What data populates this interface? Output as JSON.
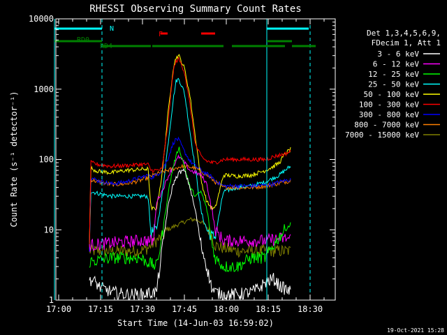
{
  "chart_data": {
    "type": "line",
    "title": "RHESSI Observing Summary Count Rates",
    "xlabel": "Start Time (14-Jun-03 16:59:02)",
    "ylabel": "Count Rate (s⁻¹ detector⁻¹)",
    "yscale": "log",
    "ylim": [
      1,
      10000
    ],
    "xlim_minutes": [
      0,
      100
    ],
    "x_ticks": [
      "17:00",
      "17:15",
      "17:30",
      "17:45",
      "18:00",
      "18:15",
      "18:30"
    ],
    "y_ticks": [
      "1",
      "10",
      "100",
      "1000",
      "10000"
    ],
    "legend_header": [
      "Det 1,3,4,5,6,9,",
      "FDecim 1, Att 1"
    ],
    "legend_position": "right",
    "series": [
      {
        "name": "3 - 6 keV",
        "color": "#ffffff",
        "t": [
          12,
          14,
          16,
          18,
          20,
          25,
          30,
          36,
          38,
          40,
          42,
          44,
          46,
          48,
          50,
          52,
          54,
          55,
          56,
          57,
          60,
          65,
          70,
          73,
          75,
          78,
          80,
          84
        ],
        "v": [
          2,
          1.8,
          1.5,
          1.4,
          1.3,
          1.2,
          1.2,
          1.3,
          5,
          20,
          45,
          65,
          70,
          40,
          18,
          6,
          3,
          2,
          1.4,
          1.3,
          1.2,
          1.2,
          1.3,
          1.5,
          1.8,
          2,
          1.6,
          1.3
        ]
      },
      {
        "name": "6 - 12 keV",
        "color": "#ff00ff",
        "t": [
          12,
          20,
          30,
          35,
          36,
          38,
          40,
          42,
          44,
          46,
          48,
          50,
          52,
          54,
          56,
          57,
          60,
          65,
          70,
          75,
          80,
          84
        ],
        "v": [
          6,
          6.5,
          7,
          7,
          25,
          35,
          55,
          80,
          110,
          90,
          70,
          65,
          60,
          45,
          18,
          10,
          7,
          7,
          7,
          7,
          7.5,
          7.5
        ]
      },
      {
        "name": "12 - 25 keV",
        "color": "#00ff00",
        "t": [
          12,
          20,
          25,
          30,
          36,
          38,
          40,
          42,
          44,
          46,
          48,
          50,
          52,
          54,
          56,
          57,
          60,
          65,
          70,
          75,
          80,
          82,
          84
        ],
        "v": [
          3.5,
          4,
          4,
          4,
          3,
          8,
          30,
          80,
          150,
          80,
          40,
          30,
          35,
          20,
          6,
          4,
          3,
          3,
          4,
          4,
          8,
          10,
          12
        ]
      },
      {
        "name": "25 - 50 keV",
        "color": "#00ffff",
        "t": [
          12,
          12.5,
          15,
          20,
          25,
          30,
          33,
          34,
          36,
          38,
          40,
          42,
          43,
          44,
          46,
          48,
          50,
          52,
          54,
          56,
          57,
          60,
          65,
          70,
          75,
          78,
          80,
          82,
          84
        ],
        "v": [
          6,
          35,
          33,
          30,
          30,
          30,
          30,
          9,
          10,
          30,
          150,
          700,
          1300,
          1400,
          900,
          250,
          70,
          18,
          10,
          8,
          8,
          35,
          40,
          42,
          48,
          55,
          60,
          70,
          80
        ]
      },
      {
        "name": "50 - 100 keV",
        "color": "#ffff00",
        "t": [
          12,
          12.5,
          15,
          20,
          25,
          30,
          33,
          34,
          36,
          38,
          40,
          42,
          43,
          44,
          46,
          48,
          50,
          52,
          54,
          56,
          57,
          60,
          65,
          70,
          75,
          78,
          80,
          82,
          84
        ],
        "v": [
          6,
          75,
          68,
          65,
          70,
          72,
          74,
          20,
          20,
          60,
          400,
          2000,
          2800,
          3000,
          2000,
          800,
          200,
          50,
          25,
          20,
          20,
          60,
          58,
          60,
          70,
          80,
          90,
          120,
          140
        ]
      },
      {
        "name": "100 - 300 keV",
        "color": "#ff0000",
        "t": [
          12,
          12.5,
          15,
          20,
          25,
          30,
          33,
          34,
          36,
          38,
          40,
          42,
          43,
          44,
          46,
          48,
          50,
          52,
          54,
          56,
          57,
          60,
          65,
          70,
          75,
          78,
          80,
          82,
          84
        ],
        "v": [
          6,
          90,
          85,
          80,
          82,
          85,
          85,
          70,
          70,
          72,
          300,
          1800,
          2500,
          2700,
          1800,
          600,
          160,
          110,
          95,
          90,
          90,
          100,
          100,
          100,
          100,
          110,
          115,
          120,
          130
        ]
      },
      {
        "name": "300 - 800 keV",
        "color": "#0000ff",
        "t": [
          12,
          12.5,
          15,
          20,
          25,
          30,
          33,
          34,
          36,
          38,
          40,
          42,
          43,
          44,
          46,
          48,
          50,
          52,
          54,
          56,
          57,
          60,
          65,
          70,
          75,
          78,
          80,
          82,
          84
        ],
        "v": [
          6,
          55,
          50,
          45,
          48,
          55,
          60,
          55,
          60,
          70,
          100,
          170,
          195,
          190,
          130,
          95,
          80,
          70,
          62,
          56,
          50,
          42,
          42,
          42,
          43,
          45,
          48,
          50,
          52
        ]
      },
      {
        "name": "800 - 7000 keV",
        "color": "#ff8000",
        "t": [
          12,
          12.5,
          15,
          20,
          25,
          30,
          33,
          34,
          36,
          38,
          40,
          42,
          43,
          44,
          46,
          48,
          50,
          52,
          54,
          56,
          57,
          60,
          65,
          70,
          75,
          78,
          80,
          82,
          84
        ],
        "v": [
          6,
          52,
          48,
          44,
          45,
          50,
          55,
          58,
          62,
          66,
          70,
          74,
          75,
          78,
          80,
          78,
          75,
          68,
          60,
          52,
          48,
          40,
          40,
          40,
          42,
          44,
          46,
          48,
          50
        ]
      },
      {
        "name": "7000 - 15000 keV",
        "color": "#808000",
        "t": [
          12,
          20,
          25,
          30,
          33,
          34,
          36,
          38,
          40,
          42,
          44,
          46,
          48,
          50,
          52,
          54,
          56,
          57,
          60,
          65,
          70,
          75,
          80,
          84
        ],
        "v": [
          5,
          5,
          5,
          5,
          5.5,
          6,
          7,
          8,
          10,
          11,
          12,
          13,
          14,
          14,
          13,
          11,
          8,
          6,
          5.5,
          5,
          5,
          5,
          5,
          5
        ]
      }
    ],
    "annotations": {
      "N": {
        "label": "N",
        "color": "#00ffff",
        "segments": [
          [
            -0.5,
            16.5
          ],
          [
            75.5,
            90.5
          ]
        ]
      },
      "F": {
        "label": "F",
        "color": "#ff0000",
        "segments": [
          [
            37.5,
            40.0
          ],
          [
            52.0,
            57.0
          ]
        ]
      },
      "RD0": {
        "label": "RD0",
        "color": "#008000",
        "segments": [
          [
            -0.5,
            16.5
          ],
          [
            75.5,
            84.5
          ]
        ]
      },
      "RD4": {
        "label": "RD4",
        "color": "#008000",
        "segments": [
          [
            16.5,
            34.0
          ],
          [
            34.5,
            60.0
          ],
          [
            63.0,
            82.0
          ],
          [
            84.5,
            93.0
          ]
        ]
      },
      "vlines": {
        "solid": [
          -0.5,
          75.5
        ],
        "dashed": [
          16.5,
          91.0
        ],
        "color": "#00ffff"
      }
    }
  },
  "footer": {
    "timestamp": "19-Oct-2021 15:28"
  }
}
